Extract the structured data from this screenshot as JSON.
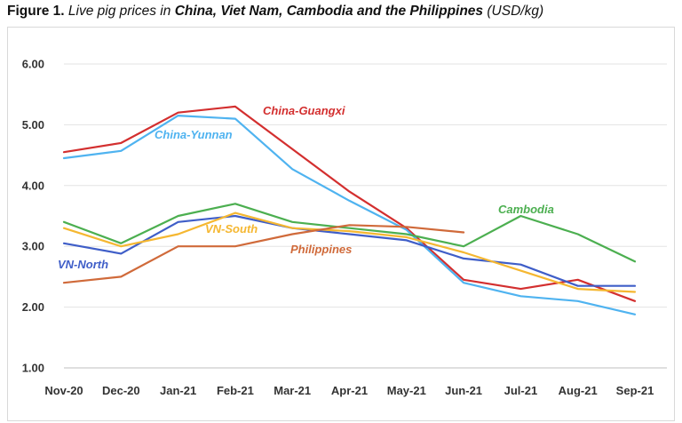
{
  "caption": {
    "label": "Figure 1.",
    "text": "Live pig prices in",
    "countries": "China, Viet Nam, Cambodia and the Philippines",
    "units": "(USD/kg)"
  },
  "chart_data": {
    "type": "line",
    "title": "Live pig prices in China, Viet Nam, Cambodia and the Philippines",
    "xlabel": "",
    "ylabel": "",
    "ylim": [
      1.0,
      6.0
    ],
    "yticks": [
      "1.00",
      "2.00",
      "3.00",
      "4.00",
      "5.00",
      "6.00"
    ],
    "ytick_values": [
      1,
      2,
      3,
      4,
      5,
      6
    ],
    "grid": true,
    "legend": "inline labels",
    "categories": [
      "Nov-20",
      "Dec-20",
      "Jan-21",
      "Feb-21",
      "Mar-21",
      "Apr-21",
      "May-21",
      "Jun-21",
      "Jul-21",
      "Aug-21",
      "Sep-21"
    ],
    "series": [
      {
        "name": "China-Guangxi",
        "color": "#d32f2f",
        "values": [
          4.55,
          4.7,
          5.2,
          5.3,
          4.6,
          3.9,
          3.3,
          2.45,
          2.3,
          2.45,
          2.1
        ]
      },
      {
        "name": "China-Yunnan",
        "color": "#4fb3f0",
        "values": [
          4.45,
          4.57,
          5.15,
          5.1,
          4.27,
          3.75,
          3.27,
          2.4,
          2.18,
          2.1,
          1.88
        ]
      },
      {
        "name": "Cambodia",
        "color": "#4caf50",
        "values": [
          3.4,
          3.05,
          3.5,
          3.7,
          3.4,
          3.3,
          3.2,
          3.0,
          3.5,
          3.2,
          2.75
        ]
      },
      {
        "name": "VN-North",
        "color": "#3f5ec8",
        "values": [
          3.05,
          2.88,
          3.4,
          3.5,
          3.3,
          3.2,
          3.1,
          2.8,
          2.7,
          2.35,
          2.35
        ]
      },
      {
        "name": "VN-South",
        "color": "#f5b731",
        "values": [
          3.3,
          3.0,
          3.2,
          3.55,
          3.3,
          3.25,
          3.15,
          2.9,
          2.6,
          2.3,
          2.25
        ]
      },
      {
        "name": "Philippines",
        "color": "#d06a3a",
        "values": [
          2.4,
          2.5,
          3.0,
          3.0,
          3.2,
          3.35,
          3.32,
          3.23,
          null,
          null,
          null
        ]
      }
    ]
  }
}
